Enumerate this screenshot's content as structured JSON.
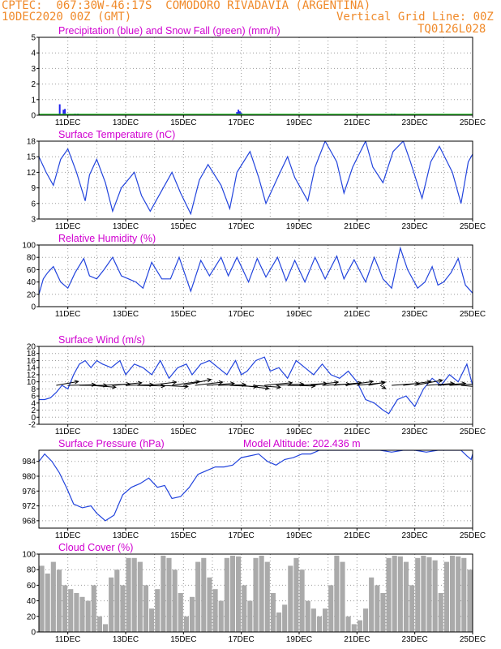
{
  "header": {
    "line1_left": "CPTEC:  067:30W-46:17S  COMODORO RIVADAVIA (ARGENTINA)",
    "line2_left": "10DEC2020 00Z (GMT)",
    "line2_right": "Vertical Grid Line: 00Z",
    "line3_right": "TQ0126L028"
  },
  "colors": {
    "header": "#f08a2a",
    "panel_title": "#d000d0",
    "series_line": "#2244dd",
    "precip_bar": "#2222ee",
    "snow_line": "#22bb22",
    "cloud_fill": "#aaaaaa",
    "wind_arrow": "#000000"
  },
  "x_axis": {
    "ticks": [
      "11DEC",
      "13DEC",
      "15DEC",
      "17DEC",
      "19DEC",
      "21DEC",
      "23DEC",
      "25DEC"
    ]
  },
  "chart_data": [
    {
      "id": "precipitation",
      "type": "bar",
      "title": "Precipitation (blue) and Snow Fall (green) (mm/h)",
      "ylim": [
        0,
        5
      ],
      "yticks": [
        0,
        1,
        2,
        3,
        4,
        5
      ],
      "xlim": [
        0,
        15
      ],
      "series": [
        {
          "name": "Precipitation",
          "color": "#2222ee",
          "x": [
            0.72,
            0.85,
            0.9,
            1.25,
            1.35,
            6.85,
            6.9,
            6.95,
            7.0,
            12.2,
            12.3
          ],
          "values": [
            0.7,
            0.35,
            0.4,
            0.1,
            0.1,
            0.2,
            0.35,
            0.25,
            0.15,
            0.1,
            0.1
          ]
        },
        {
          "name": "Snow Fall",
          "color": "#22bb22",
          "values": [
            0
          ]
        }
      ]
    },
    {
      "id": "temperature",
      "type": "line",
      "title": "Surface Temperature (nC)",
      "ylim": [
        3,
        18
      ],
      "yticks": [
        3,
        6,
        9,
        12,
        15,
        18
      ],
      "xlim": [
        0,
        15
      ],
      "series": [
        {
          "x": [
            0,
            0.25,
            0.5,
            0.75,
            1.0,
            1.3,
            1.6,
            1.75,
            2.0,
            2.3,
            2.55,
            2.85,
            3.3,
            3.55,
            3.85,
            4.3,
            4.6,
            4.9,
            5.25,
            5.55,
            5.85,
            6.3,
            6.6,
            6.85,
            7.3,
            7.6,
            7.85,
            8.3,
            8.6,
            8.85,
            9.3,
            9.55,
            9.9,
            10.3,
            10.55,
            10.85,
            11.3,
            11.55,
            11.9,
            12.25,
            12.6,
            12.85,
            13.25,
            13.55,
            13.85,
            14.3,
            14.6,
            14.85,
            15.0
          ],
          "values": [
            15,
            12,
            9.5,
            14.5,
            16.5,
            12,
            6.5,
            11.5,
            14.5,
            10,
            4.5,
            9,
            12,
            7.5,
            4.5,
            9,
            12,
            8,
            4,
            10.5,
            13.5,
            9.5,
            5,
            12,
            16,
            11,
            6,
            11.5,
            15,
            11,
            6.5,
            13,
            18,
            14,
            8,
            13,
            18,
            13,
            10,
            16,
            18,
            14,
            7,
            14,
            17,
            12,
            6,
            14,
            15.5
          ]
        }
      ]
    },
    {
      "id": "humidity",
      "type": "line",
      "title": "Relative Humidity (%)",
      "ylim": [
        0,
        100
      ],
      "yticks": [
        0,
        20,
        40,
        60,
        80,
        100
      ],
      "xlim": [
        0,
        15
      ],
      "series": [
        {
          "x": [
            0,
            0.15,
            0.3,
            0.5,
            0.75,
            1.0,
            1.25,
            1.55,
            1.75,
            2.0,
            2.25,
            2.55,
            2.85,
            3.1,
            3.35,
            3.6,
            3.9,
            4.25,
            4.55,
            4.85,
            5.25,
            5.6,
            5.9,
            6.3,
            6.55,
            6.85,
            7.25,
            7.55,
            7.85,
            8.25,
            8.55,
            8.85,
            9.2,
            9.55,
            9.9,
            10.3,
            10.55,
            10.9,
            11.3,
            11.6,
            11.9,
            12.2,
            12.5,
            12.75,
            13.1,
            13.35,
            13.6,
            13.8,
            14.0,
            14.25,
            14.5,
            14.75,
            15.0
          ],
          "values": [
            20,
            45,
            55,
            65,
            40,
            30,
            55,
            78,
            50,
            45,
            60,
            80,
            50,
            45,
            40,
            30,
            72,
            45,
            45,
            80,
            25,
            75,
            50,
            80,
            50,
            80,
            40,
            78,
            48,
            80,
            42,
            75,
            40,
            80,
            45,
            82,
            45,
            76,
            40,
            80,
            45,
            30,
            95,
            60,
            30,
            40,
            65,
            35,
            40,
            55,
            78,
            35,
            22
          ]
        }
      ]
    },
    {
      "id": "wind",
      "type": "line",
      "title": "Surface Wind (m/s)",
      "ylim": [
        -2,
        20
      ],
      "yticks": [
        -2,
        0,
        2,
        4,
        6,
        8,
        10,
        12,
        14,
        16,
        18,
        20
      ],
      "xlim": [
        0,
        15
      ],
      "series": [
        {
          "x": [
            0,
            0.2,
            0.4,
            0.6,
            0.8,
            1.0,
            1.2,
            1.4,
            1.6,
            1.8,
            2.0,
            2.2,
            2.5,
            2.8,
            3.0,
            3.3,
            3.6,
            3.9,
            4.2,
            4.5,
            4.8,
            5.1,
            5.3,
            5.6,
            5.9,
            6.2,
            6.5,
            6.8,
            7.0,
            7.2,
            7.5,
            7.8,
            8.0,
            8.3,
            8.6,
            8.9,
            9.2,
            9.5,
            9.8,
            10.1,
            10.4,
            10.7,
            11.0,
            11.3,
            11.6,
            11.9,
            12.1,
            12.4,
            12.7,
            13.0,
            13.3,
            13.6,
            13.9,
            14.2,
            14.5,
            14.8,
            15.0
          ],
          "values": [
            5,
            5,
            5.5,
            7,
            9,
            8,
            12,
            15,
            16,
            14,
            16,
            15,
            14,
            16,
            12,
            15,
            14,
            12,
            16,
            11,
            14,
            15,
            12,
            15,
            16,
            14,
            12,
            16,
            12,
            13,
            16,
            17,
            13,
            14,
            11,
            16,
            14,
            12,
            15,
            12,
            11,
            13,
            10,
            5,
            4,
            2,
            1,
            5,
            6,
            3,
            8,
            11,
            9,
            12,
            10,
            15,
            9
          ]
        }
      ],
      "vectors": [
        {
          "x": 0.6,
          "u": 0.8,
          "v": 0.6
        },
        {
          "x": 1.0,
          "u": 1.0,
          "v": 0.1
        },
        {
          "x": 1.4,
          "u": 1.0,
          "v": 0.0
        },
        {
          "x": 1.8,
          "u": 0.9,
          "v": -0.3
        },
        {
          "x": 2.2,
          "u": 1.0,
          "v": 0.2
        },
        {
          "x": 2.6,
          "u": 1.0,
          "v": 0.4
        },
        {
          "x": 3.0,
          "u": 1.0,
          "v": 0.1
        },
        {
          "x": 3.4,
          "u": 1.0,
          "v": -0.1
        },
        {
          "x": 3.8,
          "u": 1.0,
          "v": 0.5
        },
        {
          "x": 4.2,
          "u": 1.0,
          "v": -0.2
        },
        {
          "x": 4.6,
          "u": 1.0,
          "v": 0.6
        },
        {
          "x": 5.0,
          "u": 1.0,
          "v": 0.9
        },
        {
          "x": 5.4,
          "u": 1.0,
          "v": 0.5
        },
        {
          "x": 5.8,
          "u": 1.0,
          "v": 0.3
        },
        {
          "x": 6.2,
          "u": 1.0,
          "v": 0.1
        },
        {
          "x": 6.6,
          "u": 1.0,
          "v": -0.2
        },
        {
          "x": 7.0,
          "u": 1.0,
          "v": -0.5
        },
        {
          "x": 7.4,
          "u": 1.0,
          "v": -0.3
        },
        {
          "x": 7.8,
          "u": 1.0,
          "v": 0.4
        },
        {
          "x": 8.2,
          "u": 1.0,
          "v": 0.2
        },
        {
          "x": 8.6,
          "u": 1.0,
          "v": -0.1
        },
        {
          "x": 9.0,
          "u": 1.0,
          "v": 0.3
        },
        {
          "x": 9.4,
          "u": 1.0,
          "v": 0.5
        },
        {
          "x": 9.8,
          "u": 1.0,
          "v": 0.2
        },
        {
          "x": 10.2,
          "u": 1.0,
          "v": 0.4
        },
        {
          "x": 10.6,
          "u": 1.0,
          "v": 0.6
        },
        {
          "x": 11.0,
          "u": 1.0,
          "v": 0.4
        },
        {
          "x": 11.4,
          "u": 0.6,
          "v": 0.5
        },
        {
          "x": 11.8,
          "u": 0.2,
          "v": -0.5
        },
        {
          "x": 12.2,
          "u": 1.0,
          "v": 0.3
        },
        {
          "x": 12.6,
          "u": 1.0,
          "v": 0.6
        },
        {
          "x": 13.0,
          "u": 1.0,
          "v": 0.8
        },
        {
          "x": 13.4,
          "u": 1.0,
          "v": 0.3
        },
        {
          "x": 13.8,
          "u": 1.0,
          "v": 0.3
        },
        {
          "x": 14.2,
          "u": 1.0,
          "v": 0.2
        },
        {
          "x": 14.6,
          "u": 0.8,
          "v": -0.3
        },
        {
          "x": 15.0,
          "u": 0.5,
          "v": -0.4
        }
      ]
    },
    {
      "id": "pressure",
      "type": "line",
      "title": "Surface Pressure (hPa)",
      "subtitle": "Model Altitude: 202.436 m",
      "ylim": [
        966,
        987
      ],
      "yticks": [
        968,
        972,
        976,
        980,
        984
      ],
      "xlim": [
        0,
        15
      ],
      "series": [
        {
          "x": [
            0,
            0.2,
            0.45,
            0.7,
            0.95,
            1.2,
            1.5,
            1.8,
            2.0,
            2.3,
            2.6,
            2.9,
            3.2,
            3.5,
            3.8,
            4.1,
            4.35,
            4.6,
            4.9,
            5.2,
            5.5,
            5.8,
            6.1,
            6.4,
            6.7,
            7.0,
            7.3,
            7.6,
            7.9,
            8.2,
            8.5,
            8.8,
            9.1,
            9.4,
            9.7,
            10.0,
            10.3,
            10.6,
            11.0,
            11.4,
            11.8,
            12.2,
            12.6,
            13.0,
            13.4,
            13.8,
            14.2,
            14.6,
            14.8,
            14.95,
            15.0
          ],
          "values": [
            984,
            986,
            984,
            981,
            977,
            972.5,
            971.5,
            972,
            970,
            968,
            969.5,
            975,
            977,
            978,
            979.5,
            977,
            977.5,
            974,
            974.5,
            977,
            980.5,
            981.5,
            982.5,
            982.5,
            983,
            985,
            985.5,
            986,
            984,
            983,
            984.5,
            985,
            986,
            986,
            987,
            987,
            987,
            987,
            987,
            987,
            987,
            986.5,
            987,
            987,
            986.5,
            987,
            987,
            987,
            985.5,
            984.5,
            986
          ]
        }
      ]
    },
    {
      "id": "cloud",
      "type": "bar",
      "title": "Cloud Cover (%)",
      "ylim": [
        0,
        100
      ],
      "yticks": [
        0,
        20,
        40,
        60,
        80,
        100
      ],
      "xlim": [
        0,
        15
      ],
      "series": [
        {
          "x": [
            0.1,
            0.3,
            0.5,
            0.7,
            0.9,
            1.1,
            1.3,
            1.5,
            1.7,
            1.9,
            2.1,
            2.3,
            2.5,
            2.7,
            2.9,
            3.1,
            3.3,
            3.5,
            3.7,
            3.9,
            4.1,
            4.3,
            4.5,
            4.7,
            4.9,
            5.1,
            5.3,
            5.5,
            5.7,
            5.9,
            6.1,
            6.3,
            6.5,
            6.7,
            6.9,
            7.1,
            7.3,
            7.5,
            7.7,
            7.9,
            8.1,
            8.3,
            8.5,
            8.7,
            8.9,
            9.1,
            9.3,
            9.5,
            9.7,
            9.9,
            10.1,
            10.3,
            10.5,
            10.7,
            10.9,
            11.1,
            11.3,
            11.5,
            11.7,
            11.9,
            12.1,
            12.3,
            12.5,
            12.7,
            12.9,
            13.1,
            13.3,
            13.5,
            13.7,
            13.9,
            14.1,
            14.3,
            14.5,
            14.7,
            14.9
          ],
          "values": [
            85,
            75,
            90,
            80,
            60,
            55,
            50,
            45,
            40,
            60,
            20,
            10,
            70,
            80,
            60,
            95,
            95,
            90,
            60,
            30,
            55,
            98,
            95,
            80,
            50,
            20,
            45,
            90,
            95,
            70,
            55,
            40,
            95,
            98,
            97,
            60,
            40,
            95,
            98,
            90,
            50,
            25,
            35,
            85,
            95,
            80,
            40,
            30,
            20,
            30,
            60,
            98,
            90,
            20,
            10,
            15,
            30,
            70,
            60,
            50,
            95,
            98,
            97,
            90,
            60,
            95,
            98,
            96,
            92,
            50,
            90,
            98,
            97,
            95,
            80
          ]
        }
      ]
    }
  ]
}
